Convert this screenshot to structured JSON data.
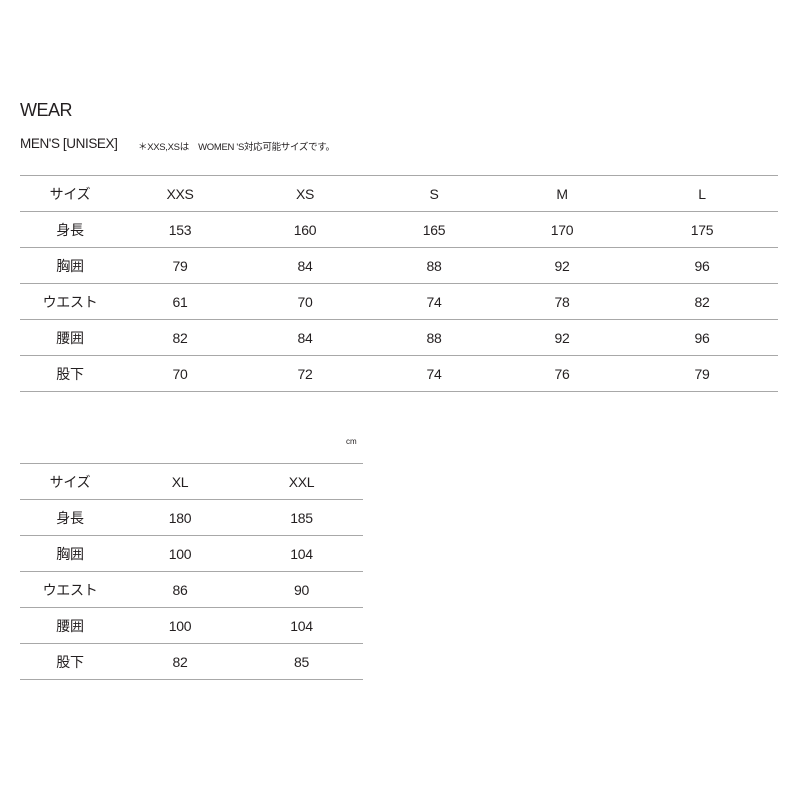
{
  "title": "WEAR",
  "subtitle": "MEN'S [UNISEX]",
  "note": "＊XXS,XSは　WOMEN 'S対応可能サイズです。",
  "unit": "cm",
  "table1": {
    "header": [
      "サイズ",
      "XXS",
      "XS",
      "S",
      "M",
      "L"
    ],
    "rows": [
      [
        "身長",
        "153",
        "160",
        "165",
        "170",
        "175"
      ],
      [
        "胸囲",
        "79",
        "84",
        "88",
        "92",
        "96"
      ],
      [
        "ウエスト",
        "61",
        "70",
        "74",
        "78",
        "82"
      ],
      [
        "腰囲",
        "82",
        "84",
        "88",
        "92",
        "96"
      ],
      [
        "股下",
        "70",
        "72",
        "74",
        "76",
        "79"
      ]
    ]
  },
  "table2": {
    "header": [
      "サイズ",
      "XL",
      "XXL"
    ],
    "rows": [
      [
        "身長",
        "180",
        "185"
      ],
      [
        "胸囲",
        "100",
        "104"
      ],
      [
        "ウエスト",
        "86",
        "90"
      ],
      [
        "腰囲",
        "100",
        "104"
      ],
      [
        "股下",
        "82",
        "85"
      ]
    ]
  }
}
